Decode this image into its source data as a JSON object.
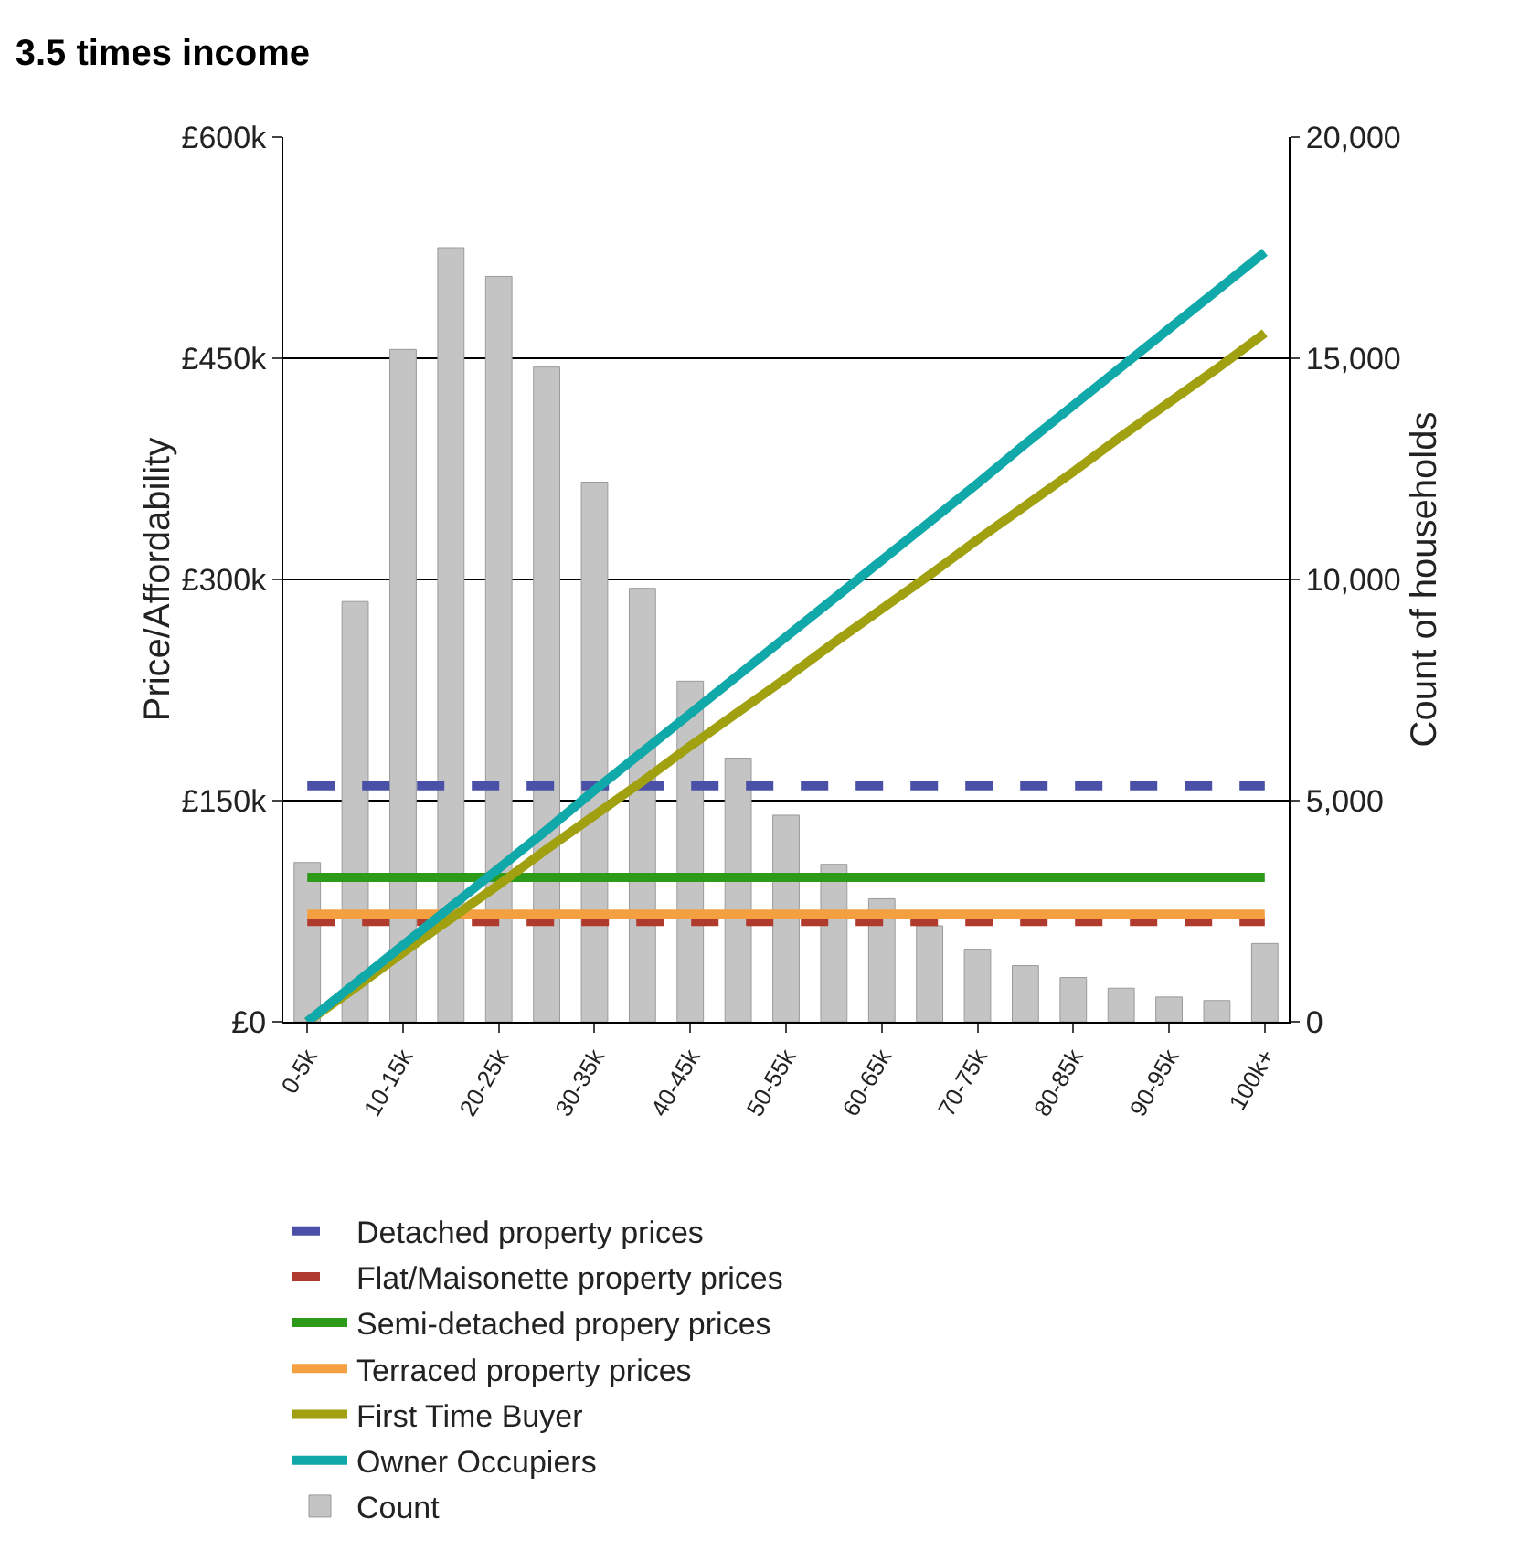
{
  "chart_data": {
    "type": "line",
    "title": "3.5 times income",
    "ylabel": "Price/Affordability",
    "y2label": "Count of households",
    "categories": [
      "0-5k",
      null,
      "10-15k",
      null,
      "20-25k",
      null,
      "30-35k",
      null,
      "40-45k",
      null,
      "50-55k",
      null,
      "60-65k",
      null,
      "70-75k",
      null,
      "80-85k",
      null,
      "90-95k",
      null,
      "100k+"
    ],
    "series": [
      {
        "name": "Detached property prices",
        "color": "#4a4fa8",
        "line_style": "dashed",
        "values": [
          160,
          160,
          160,
          160,
          160,
          160,
          160,
          160,
          160,
          160,
          160,
          160,
          160,
          160,
          160,
          160,
          160,
          160,
          160,
          160,
          160
        ]
      },
      {
        "name": "Flat/Maisonette property prices",
        "color": "#b03a2e",
        "line_style": "dashed",
        "values": [
          68,
          68,
          68,
          68,
          68,
          68,
          68,
          68,
          68,
          68,
          68,
          68,
          68,
          68,
          68,
          68,
          68,
          68,
          68,
          68,
          68
        ]
      },
      {
        "name": "Semi-detached propery prices",
        "color": "#2e9a1a",
        "line_style": "solid",
        "values": [
          98,
          98,
          98,
          98,
          98,
          98,
          98,
          98,
          98,
          98,
          98,
          98,
          98,
          98,
          98,
          98,
          98,
          98,
          98,
          98,
          98
        ]
      },
      {
        "name": "Terraced property prices",
        "color": "#f5a040",
        "line_style": "solid",
        "values": [
          73,
          73,
          73,
          73,
          73,
          73,
          73,
          73,
          73,
          73,
          73,
          73,
          73,
          73,
          73,
          73,
          73,
          73,
          73,
          73,
          73
        ]
      },
      {
        "name": "First Time Buyer",
        "color": "#a0a010",
        "line_style": "solid",
        "values": [
          0,
          23,
          47,
          70,
          93,
          117,
          140,
          163,
          187,
          210,
          233,
          257,
          280,
          303,
          327,
          350,
          373,
          397,
          420,
          443,
          467
        ]
      },
      {
        "name": "Owner Occupiers",
        "color": "#10a8a8",
        "line_style": "solid",
        "values": [
          0,
          26,
          52,
          78,
          104,
          130,
          157,
          183,
          209,
          235,
          261,
          287,
          313,
          339,
          365,
          392,
          418,
          444,
          470,
          496,
          522
        ]
      },
      {
        "name": "Count",
        "type": "bar",
        "axis": "y2",
        "color": "#c4c4c4",
        "values": [
          3600,
          9500,
          15200,
          17500,
          16850,
          14800,
          12200,
          9800,
          7700,
          5960,
          4670,
          3560,
          2780,
          2170,
          1640,
          1270,
          1000,
          760,
          560,
          480,
          1770
        ]
      }
    ],
    "ylim": [
      0,
      600
    ],
    "yticks": [
      {
        "value": 0,
        "label": "£0"
      },
      {
        "value": 150,
        "label": "£150k"
      },
      {
        "value": 300,
        "label": "£300k"
      },
      {
        "value": 450,
        "label": "£450k"
      },
      {
        "value": 600,
        "label": "£600k"
      }
    ],
    "y2lim": [
      0,
      20000
    ],
    "y2ticks": [
      0,
      {
        "value": 5000,
        "label": "5,000"
      },
      {
        "value": 10000,
        "label": "10,000"
      },
      {
        "value": 15000,
        "label": "15,000"
      },
      {
        "value": 20000,
        "label": "20,000"
      }
    ],
    "grid": "y",
    "legend": "bottom"
  }
}
